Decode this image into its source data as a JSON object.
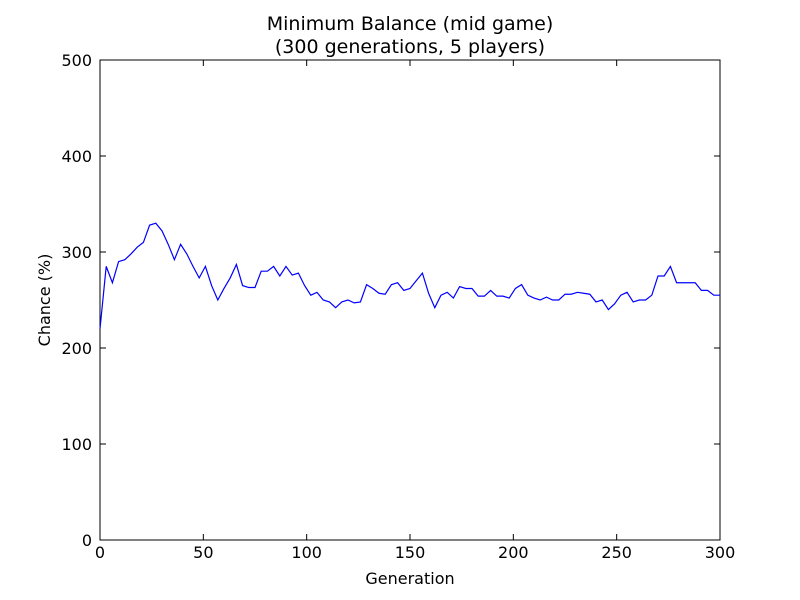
{
  "chart_data": {
    "type": "line",
    "title": "Minimum Balance (mid game)",
    "subtitle": "(300 generations, 5 players)",
    "x_label": "Generation",
    "y_label": "Chance (%)",
    "xlim": [
      0,
      300
    ],
    "xticks": [
      0,
      50,
      100,
      150,
      200,
      250,
      300
    ],
    "ylim": [
      0,
      500
    ],
    "yticks": [
      0,
      100,
      200,
      300,
      400,
      500
    ],
    "grid": false,
    "x": [
      0,
      3,
      6,
      9,
      12,
      15,
      18,
      21,
      24,
      27,
      30,
      33,
      36,
      39,
      42,
      45,
      48,
      51,
      54,
      57,
      60,
      63,
      66,
      69,
      72,
      75,
      78,
      81,
      84,
      87,
      90,
      93,
      96,
      99,
      102,
      105,
      108,
      111,
      114,
      117,
      120,
      123,
      126,
      129,
      132,
      135,
      138,
      141,
      144,
      147,
      150,
      153,
      156,
      159,
      162,
      165,
      168,
      171,
      174,
      177,
      180,
      183,
      186,
      189,
      192,
      195,
      198,
      201,
      204,
      207,
      210,
      213,
      216,
      219,
      222,
      225,
      228,
      231,
      234,
      237,
      240,
      243,
      246,
      249,
      252,
      255,
      258,
      261,
      264,
      267,
      270,
      273,
      276,
      279,
      282,
      285,
      288,
      291,
      294,
      297,
      300
    ],
    "series": [
      {
        "name": "Chance",
        "color": "#0000ff",
        "values": [
          220,
          285,
          268,
          290,
          292,
          298,
          305,
          310,
          328,
          330,
          322,
          308,
          292,
          308,
          298,
          285,
          273,
          285,
          265,
          250,
          262,
          273,
          287,
          265,
          263,
          263,
          280,
          280,
          285,
          275,
          285,
          276,
          278,
          265,
          255,
          258,
          250,
          248,
          242,
          248,
          250,
          247,
          248,
          266,
          262,
          257,
          256,
          266,
          268,
          260,
          262,
          270,
          278,
          257,
          242,
          255,
          258,
          252,
          264,
          262,
          262,
          254,
          254,
          260,
          254,
          254,
          252,
          262,
          266,
          255,
          252,
          250,
          253,
          250,
          250,
          256,
          256,
          258,
          257,
          256,
          248,
          250,
          240,
          246,
          255,
          258,
          248,
          250,
          250,
          255,
          275,
          275,
          285,
          268,
          268,
          268,
          268,
          260,
          260,
          255,
          255
        ]
      }
    ]
  }
}
